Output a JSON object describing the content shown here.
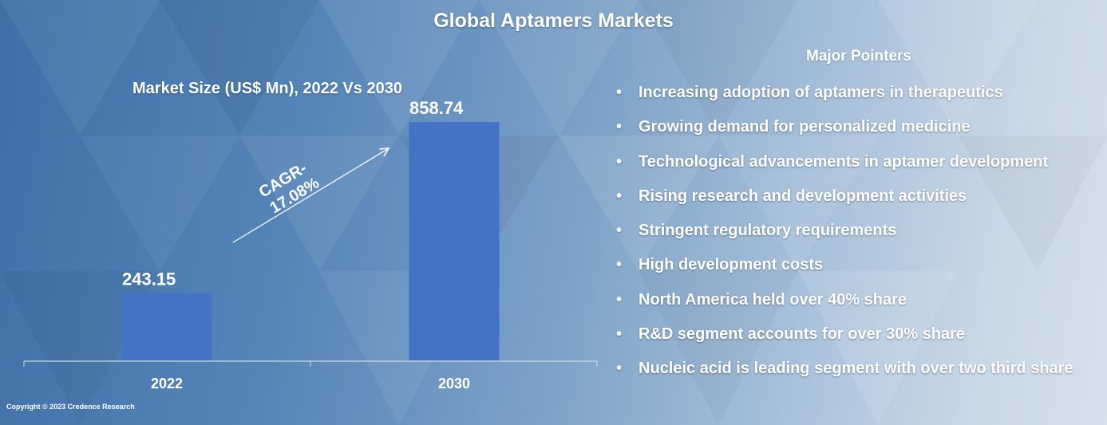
{
  "title": "Global Aptamers Markets",
  "chart_data": {
    "type": "bar",
    "title": "Market Size (US$ Mn), 2022 Vs 2030",
    "categories": [
      "2022",
      "2030"
    ],
    "values": [
      243.15,
      858.74
    ],
    "value_labels": [
      "243.15",
      "858.74"
    ],
    "ylim": [
      0,
      1000
    ],
    "grid": false,
    "bar_color": "#4472c4",
    "annotation": "CAGR- 17.08%",
    "annotation_lines": [
      "CAGR-",
      "17.08%"
    ]
  },
  "pointers": {
    "heading": "Major Pointers",
    "items": [
      "Increasing adoption of aptamers in therapeutics",
      "Growing demand for personalized medicine",
      "Technological advancements in aptamer development",
      "Rising research and development activities",
      "Stringent regulatory requirements",
      "High development costs",
      "North America held over 40% share",
      "R&D segment accounts for over 30% share",
      "Nucleic acid is leading segment with over two third share"
    ]
  },
  "copyright": "Copyright © 2023 Credence Research"
}
